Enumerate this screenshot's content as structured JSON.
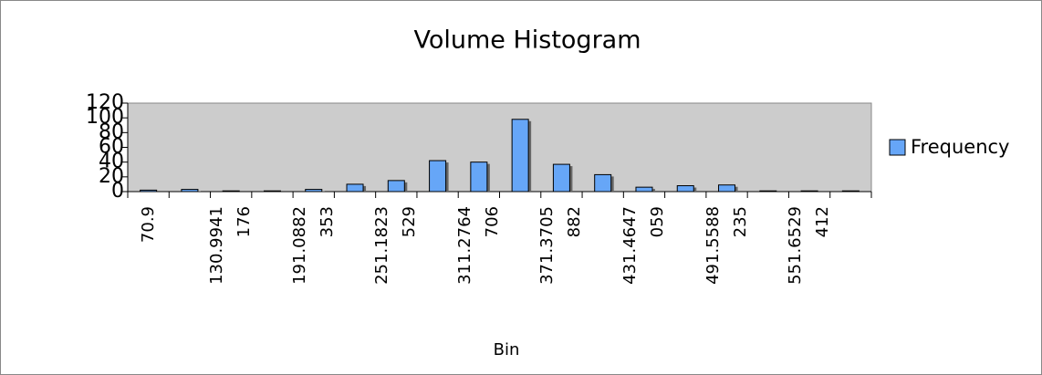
{
  "chart_data": {
    "type": "bar",
    "title": "Volume Histogram",
    "x_label": "Bin",
    "categories": [
      "70.9",
      null,
      "130.9941176",
      null,
      "191.0882353",
      null,
      "251.1823529",
      null,
      "311.2764706",
      null,
      "371.3705882",
      null,
      "431.4647059",
      null,
      "491.5588235",
      null,
      "551.6529412",
      null
    ],
    "series": [
      {
        "name": "Frequency",
        "color": "#66a6f7",
        "values": [
          2,
          3,
          1,
          1,
          3,
          10,
          15,
          42,
          40,
          98,
          37,
          23,
          6,
          8,
          9,
          1,
          1,
          1
        ]
      }
    ],
    "ylim": [
      0,
      120
    ],
    "yticks": [
      0,
      20,
      40,
      60,
      80,
      100,
      120
    ],
    "legend": "right"
  }
}
